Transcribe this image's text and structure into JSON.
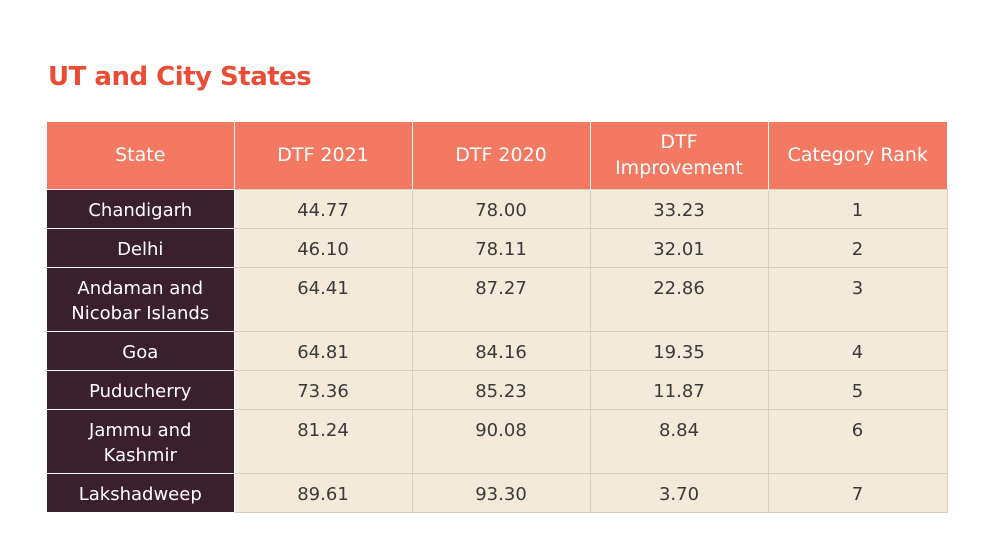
{
  "title": "UT and City States",
  "table": {
    "headers": [
      "State",
      "DTF 2021",
      "DTF 2020",
      "DTF Improvement",
      "Category Rank"
    ],
    "rows": [
      {
        "state": "Chandigarh",
        "dtf_2021": "44.77",
        "dtf_2020": "78.00",
        "improvement": "33.23",
        "rank": "1"
      },
      {
        "state": "Delhi",
        "dtf_2021": "46.10",
        "dtf_2020": "78.11",
        "improvement": "32.01",
        "rank": "2"
      },
      {
        "state": "Andaman and Nicobar Islands",
        "dtf_2021": "64.41",
        "dtf_2020": "87.27",
        "improvement": "22.86",
        "rank": "3"
      },
      {
        "state": "Goa",
        "dtf_2021": "64.81",
        "dtf_2020": "84.16",
        "improvement": "19.35",
        "rank": "4"
      },
      {
        "state": "Puducherry",
        "dtf_2021": "73.36",
        "dtf_2020": "85.23",
        "improvement": "11.87",
        "rank": "5"
      },
      {
        "state": "Jammu and Kashmir",
        "dtf_2021": "81.24",
        "dtf_2020": "90.08",
        "improvement": "8.84",
        "rank": "6"
      },
      {
        "state": "Lakshadweep",
        "dtf_2021": "89.61",
        "dtf_2020": "93.30",
        "improvement": "3.70",
        "rank": "7"
      }
    ]
  },
  "colors": {
    "title": "#ea4c35",
    "header_bg": "#f37962",
    "state_bg": "#3a1f2d",
    "cell_bg": "#f4ead9"
  }
}
